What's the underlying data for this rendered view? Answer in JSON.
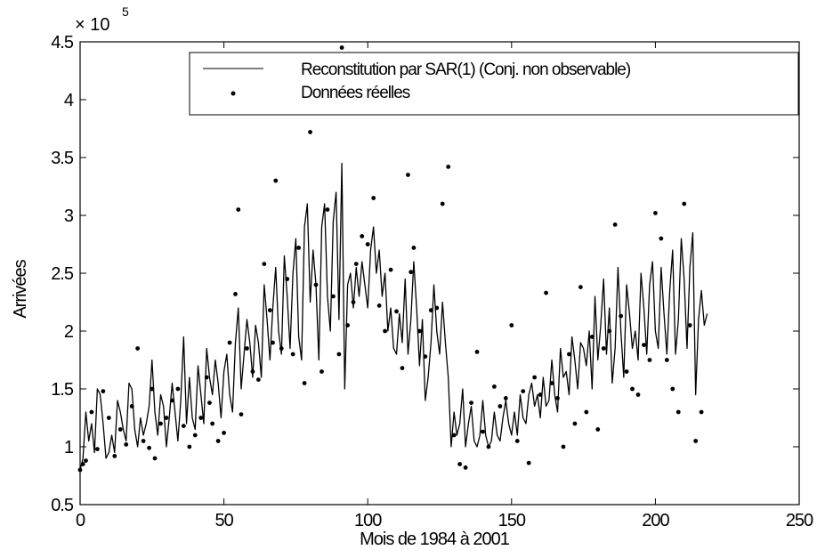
{
  "chart_data": {
    "type": "line",
    "title": "",
    "xlabel": "Mois de 1984 à 2001",
    "ylabel": "Arrivées",
    "xlim": [
      0,
      250
    ],
    "ylim": [
      0.5,
      4.5
    ],
    "y_multiplier": {
      "base": "× 10",
      "exponent": "5"
    },
    "x_ticks": [
      0,
      50,
      100,
      150,
      200,
      250
    ],
    "y_ticks": [
      0.5,
      1,
      1.5,
      2,
      2.5,
      3,
      3.5,
      4,
      4.5
    ],
    "grid": false,
    "legend_position": "top-right",
    "series": [
      {
        "name": "Reconstitution par SAR(1) (Conj. non observable)",
        "style": "line",
        "color": "#000000",
        "x_start": 0,
        "values": [
          0.8,
          0.9,
          1.3,
          1.05,
          1.2,
          0.95,
          1.5,
          1.45,
          1.2,
          0.9,
          0.95,
          1.1,
          0.95,
          1.4,
          1.3,
          1.15,
          1.05,
          1.55,
          1.5,
          1.15,
          1.0,
          1.25,
          1.1,
          1.2,
          1.35,
          1.75,
          1.3,
          1.1,
          1.45,
          1.35,
          1.0,
          1.25,
          1.55,
          1.3,
          1.05,
          1.4,
          1.95,
          1.2,
          1.6,
          1.25,
          1.15,
          1.7,
          1.45,
          1.2,
          1.85,
          1.6,
          1.45,
          1.75,
          1.55,
          1.25,
          1.65,
          1.8,
          1.45,
          1.3,
          1.9,
          2.2,
          1.5,
          1.8,
          2.1,
          1.9,
          1.6,
          2.05,
          1.9,
          1.6,
          2.4,
          2.1,
          1.75,
          2.2,
          2.55,
          2.0,
          1.8,
          2.65,
          2.3,
          1.85,
          2.5,
          2.8,
          1.95,
          1.75,
          2.9,
          3.1,
          2.25,
          2.7,
          2.4,
          1.75,
          2.9,
          3.1,
          2.3,
          2.0,
          2.95,
          3.2,
          2.1,
          3.45,
          1.5,
          2.4,
          2.5,
          2.2,
          2.55,
          2.3,
          2.6,
          2.4,
          2.2,
          2.7,
          2.9,
          2.5,
          2.7,
          2.3,
          2.5,
          2.0,
          2.2,
          1.85,
          1.8,
          2.15,
          1.9,
          2.45,
          1.8,
          2.1,
          2.6,
          2.2,
          1.7,
          2.1,
          1.4,
          1.6,
          1.9,
          2.4,
          2.0,
          1.8,
          2.25,
          1.9,
          1.6,
          1.0,
          1.3,
          1.1,
          1.2,
          1.5,
          1.0,
          1.2,
          1.35,
          1.05,
          1.0,
          1.1,
          1.4,
          1.1,
          1.0,
          1.05,
          1.3,
          1.1,
          1.05,
          1.25,
          1.4,
          1.2,
          1.1,
          1.3,
          1.1,
          1.45,
          1.25,
          1.2,
          1.45,
          1.55,
          1.35,
          1.45,
          1.25,
          1.6,
          1.35,
          1.4,
          1.75,
          1.45,
          1.3,
          1.85,
          1.6,
          1.65,
          1.45,
          1.95,
          1.75,
          1.5,
          1.9,
          1.85,
          1.7,
          2.0,
          1.5,
          2.3,
          1.75,
          2.05,
          2.45,
          1.8,
          2.2,
          1.55,
          1.85,
          2.55,
          2.0,
          1.6,
          2.4,
          2.15,
          1.85,
          2.0,
          1.75,
          2.5,
          2.2,
          1.8,
          2.4,
          2.6,
          2.0,
          1.85,
          2.55,
          2.15,
          1.8,
          2.35,
          2.7,
          1.8,
          2.1,
          2.8,
          2.45,
          1.85,
          2.55,
          2.85,
          1.45,
          2.1,
          2.35,
          2.05,
          2.15
        ]
      },
      {
        "name": "Données réelles",
        "style": "points",
        "color": "#000000",
        "points": [
          [
            0,
            0.8
          ],
          [
            1,
            0.85
          ],
          [
            2,
            0.88
          ],
          [
            4,
            1.3
          ],
          [
            6,
            0.98
          ],
          [
            8,
            1.48
          ],
          [
            10,
            1.25
          ],
          [
            12,
            0.92
          ],
          [
            14,
            1.15
          ],
          [
            16,
            1.02
          ],
          [
            18,
            1.35
          ],
          [
            20,
            1.85
          ],
          [
            22,
            1.05
          ],
          [
            24,
            0.99
          ],
          [
            25,
            1.5
          ],
          [
            26,
            0.9
          ],
          [
            28,
            1.2
          ],
          [
            30,
            1.25
          ],
          [
            32,
            1.4
          ],
          [
            34,
            1.5
          ],
          [
            36,
            1.18
          ],
          [
            38,
            1.0
          ],
          [
            40,
            1.1
          ],
          [
            42,
            1.25
          ],
          [
            44,
            1.6
          ],
          [
            45,
            1.38
          ],
          [
            46,
            1.2
          ],
          [
            48,
            1.05
          ],
          [
            50,
            1.12
          ],
          [
            52,
            1.9
          ],
          [
            54,
            2.32
          ],
          [
            55,
            3.05
          ],
          [
            56,
            1.28
          ],
          [
            58,
            1.85
          ],
          [
            60,
            1.65
          ],
          [
            62,
            1.58
          ],
          [
            64,
            2.58
          ],
          [
            66,
            2.18
          ],
          [
            67,
            1.9
          ],
          [
            68,
            3.3
          ],
          [
            70,
            1.85
          ],
          [
            72,
            2.45
          ],
          [
            74,
            1.8
          ],
          [
            76,
            2.72
          ],
          [
            78,
            1.55
          ],
          [
            80,
            3.72
          ],
          [
            82,
            2.4
          ],
          [
            84,
            1.65
          ],
          [
            86,
            3.05
          ],
          [
            88,
            2.3
          ],
          [
            90,
            1.8
          ],
          [
            91,
            4.45
          ],
          [
            93,
            2.05
          ],
          [
            95,
            2.25
          ],
          [
            96,
            2.58
          ],
          [
            98,
            2.82
          ],
          [
            100,
            2.75
          ],
          [
            102,
            3.15
          ],
          [
            104,
            2.22
          ],
          [
            106,
            2.0
          ],
          [
            108,
            2.53
          ],
          [
            110,
            2.17
          ],
          [
            112,
            1.68
          ],
          [
            114,
            3.35
          ],
          [
            115,
            2.51
          ],
          [
            116,
            2.72
          ],
          [
            118,
            2.0
          ],
          [
            120,
            1.78
          ],
          [
            122,
            2.18
          ],
          [
            124,
            2.2
          ],
          [
            126,
            3.1
          ],
          [
            128,
            3.42
          ],
          [
            130,
            1.1
          ],
          [
            132,
            0.85
          ],
          [
            134,
            0.82
          ],
          [
            136,
            1.38
          ],
          [
            138,
            1.82
          ],
          [
            140,
            1.13
          ],
          [
            142,
            1.0
          ],
          [
            144,
            1.52
          ],
          [
            146,
            1.35
          ],
          [
            148,
            1.42
          ],
          [
            150,
            2.05
          ],
          [
            152,
            1.05
          ],
          [
            154,
            1.48
          ],
          [
            156,
            0.86
          ],
          [
            158,
            1.6
          ],
          [
            160,
            1.45
          ],
          [
            162,
            2.33
          ],
          [
            164,
            1.55
          ],
          [
            166,
            1.42
          ],
          [
            168,
            1.0
          ],
          [
            170,
            1.8
          ],
          [
            172,
            1.2
          ],
          [
            174,
            2.38
          ],
          [
            176,
            1.3
          ],
          [
            178,
            1.95
          ],
          [
            180,
            1.15
          ],
          [
            182,
            1.85
          ],
          [
            184,
            2.0
          ],
          [
            186,
            2.92
          ],
          [
            188,
            2.13
          ],
          [
            190,
            1.65
          ],
          [
            192,
            1.5
          ],
          [
            194,
            1.45
          ],
          [
            196,
            1.88
          ],
          [
            198,
            1.75
          ],
          [
            200,
            3.02
          ],
          [
            202,
            2.8
          ],
          [
            204,
            1.75
          ],
          [
            206,
            1.5
          ],
          [
            208,
            1.3
          ],
          [
            210,
            3.1
          ],
          [
            212,
            2.05
          ],
          [
            214,
            1.05
          ],
          [
            216,
            1.3
          ]
        ]
      }
    ]
  }
}
